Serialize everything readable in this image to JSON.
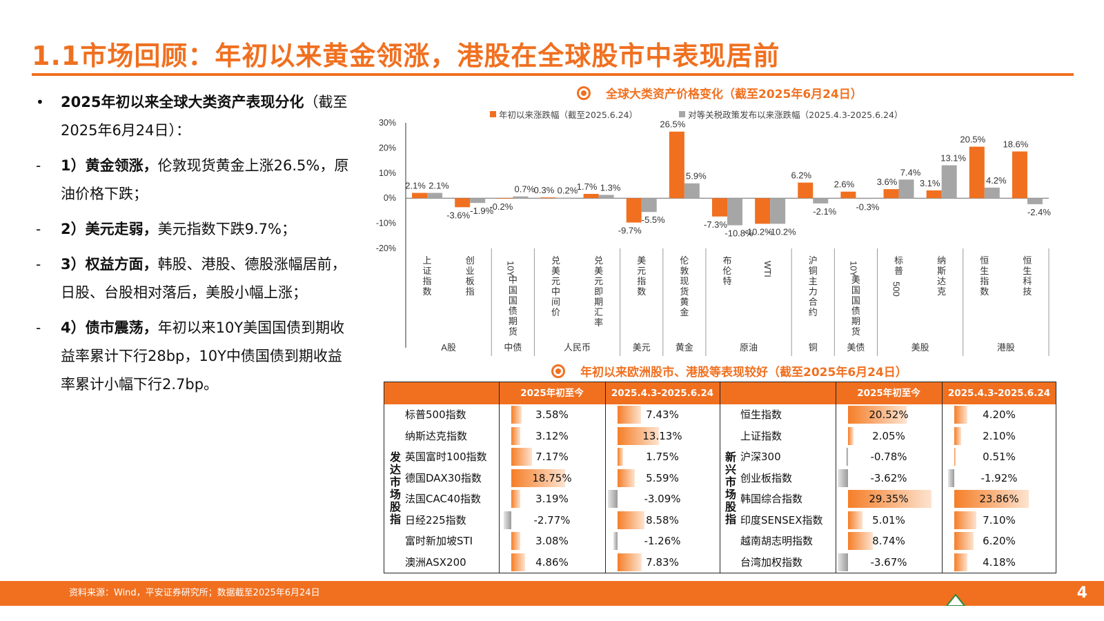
{
  "title": "1.1市场回顾：年初以来黄金领涨，港股在全球股市中表现居前",
  "bullets": [
    {
      "marker": "•",
      "bold": "2025年初以来全球大类资产表现分化",
      "text": "（截至2025年6月24日）："
    },
    {
      "marker": "-",
      "bold": "1）黄金领涨，",
      "text": "伦敦现货黄金上涨26.5%，原油价格下跌；"
    },
    {
      "marker": "-",
      "bold": "2）美元走弱，",
      "text": "美元指数下跌9.7%；"
    },
    {
      "marker": "-",
      "bold": "3）权益方面，",
      "text": "韩股、港股、德股涨幅居前，日股、台股相对落后，美股小幅上涨；"
    },
    {
      "marker": "-",
      "bold": "4）债市震荡，",
      "text": "年初以来10Y美国国债到期收益率累计下行28bp，10Y中债国债到期收益率累计小幅下行2.7bp。"
    }
  ],
  "section1_title": "全球大类资产价格变化（截至2025年6月24日）",
  "section2_title": "年初以来欧洲股市、港股等表现较好（截至2025年6月24日）",
  "legend": {
    "ytd": "年初以来涨跌幅（截至2025.6.24）",
    "tariff": "对等关税政策发布以来涨跌幅（2025.4.3-2025.6.24）"
  },
  "colors": {
    "orange": "#f07020",
    "gray": "#a6a6a6"
  },
  "chart_data": {
    "type": "bar",
    "categories": [
      "上证指数",
      "创业板指",
      "10Y中国国债期货",
      "兑美元中间价",
      "兑美元即期汇率",
      "美元指数",
      "伦敦现货黄金",
      "布伦特",
      "WTI",
      "沪铜主力合约",
      "10Y美国国债期货",
      "标普500",
      "纳斯达克",
      "恒生指数",
      "恒生科技"
    ],
    "groups": [
      {
        "label": "A股",
        "count": 2
      },
      {
        "label": "中债",
        "count": 1
      },
      {
        "label": "人民币",
        "count": 2
      },
      {
        "label": "美元",
        "count": 1
      },
      {
        "label": "黄金",
        "count": 1
      },
      {
        "label": "原油",
        "count": 2
      },
      {
        "label": "铜",
        "count": 1
      },
      {
        "label": "美债",
        "count": 1
      },
      {
        "label": "美股",
        "count": 2
      },
      {
        "label": "港股",
        "count": 2
      }
    ],
    "series": [
      {
        "name": "年初以来涨跌幅（截至2025.6.24）",
        "values": [
          2.1,
          -3.6,
          -0.2,
          0.3,
          1.7,
          -9.7,
          26.5,
          -7.3,
          -10.2,
          6.2,
          2.6,
          3.6,
          3.1,
          20.5,
          18.6
        ]
      },
      {
        "name": "对等关税政策发布以来涨跌幅（2025.4.3-2025.6.24）",
        "values": [
          2.1,
          -1.9,
          0.7,
          0.2,
          1.3,
          -5.5,
          5.9,
          -10.8,
          -10.2,
          -2.1,
          -0.3,
          7.4,
          13.1,
          4.2,
          -2.4
        ]
      }
    ],
    "value_labels": [
      [
        "2.1%",
        "-3.6%",
        "-0.2%",
        "0.3%",
        "1.7%",
        "-9.7%",
        "26.5%",
        "-7.3%",
        "-10.2%",
        "6.2%",
        "2.6%",
        "3.6%",
        "3.1%",
        "20.5%",
        "18.6%"
      ],
      [
        "2.1%",
        "-1.9%",
        "0.7%",
        "0.2%",
        "1.3%",
        "-5.5%",
        "5.9%",
        "-10.8%",
        "-10.2%",
        "-2.1%",
        "-0.3%",
        "7.4%",
        "13.1%",
        "4.2%",
        "-2.4%"
      ]
    ],
    "yticks": [
      "30%",
      "20%",
      "10%",
      "0%",
      "-10%",
      "-20%"
    ],
    "ylim": [
      -20,
      30
    ]
  },
  "table": {
    "col_ytd": "2025年初至今",
    "col_tariff": "2025.4.3-2025.6.24",
    "developed_label": "发达市场股指",
    "emerging_label": "新兴市场股指",
    "developed": [
      {
        "name": "标普500指数",
        "ytd": 3.58,
        "ytd_text": "3.58%",
        "tariff": 7.43,
        "tariff_text": "7.43%"
      },
      {
        "name": "纳斯达克指数",
        "ytd": 3.12,
        "ytd_text": "3.12%",
        "tariff": 13.13,
        "tariff_text": "13.13%"
      },
      {
        "name": "英国富时100指数",
        "ytd": 7.17,
        "ytd_text": "7.17%",
        "tariff": 1.75,
        "tariff_text": "1.75%"
      },
      {
        "name": "德国DAX30指数",
        "ytd": 18.75,
        "ytd_text": "18.75%",
        "tariff": 5.59,
        "tariff_text": "5.59%"
      },
      {
        "name": "法国CAC40指数",
        "ytd": 3.19,
        "ytd_text": "3.19%",
        "tariff": -3.09,
        "tariff_text": "-3.09%"
      },
      {
        "name": "日经225指数",
        "ytd": -2.77,
        "ytd_text": "-2.77%",
        "tariff": 8.58,
        "tariff_text": "8.58%"
      },
      {
        "name": "富时新加坡STI",
        "ytd": 3.08,
        "ytd_text": "3.08%",
        "tariff": -1.26,
        "tariff_text": "-1.26%"
      },
      {
        "name": "澳洲ASX200",
        "ytd": 4.86,
        "ytd_text": "4.86%",
        "tariff": 7.83,
        "tariff_text": "7.83%"
      }
    ],
    "emerging": [
      {
        "name": "恒生指数",
        "ytd": 20.52,
        "ytd_text": "20.52%",
        "tariff": 4.2,
        "tariff_text": "4.20%"
      },
      {
        "name": "上证指数",
        "ytd": 2.05,
        "ytd_text": "2.05%",
        "tariff": 2.1,
        "tariff_text": "2.10%"
      },
      {
        "name": "沪深300",
        "ytd": -0.78,
        "ytd_text": "-0.78%",
        "tariff": 0.51,
        "tariff_text": "0.51%"
      },
      {
        "name": "创业板指数",
        "ytd": -3.62,
        "ytd_text": "-3.62%",
        "tariff": -1.92,
        "tariff_text": "-1.92%"
      },
      {
        "name": "韩国综合指数",
        "ytd": 29.35,
        "ytd_text": "29.35%",
        "tariff": 23.86,
        "tariff_text": "23.86%"
      },
      {
        "name": "印度SENSEX指数",
        "ytd": 5.01,
        "ytd_text": "5.01%",
        "tariff": 7.1,
        "tariff_text": "7.10%"
      },
      {
        "name": "越南胡志明指数",
        "ytd": 8.74,
        "ytd_text": "8.74%",
        "tariff": 6.2,
        "tariff_text": "6.20%"
      },
      {
        "name": "台湾加权指数",
        "ytd": -3.67,
        "ytd_text": "-3.67%",
        "tariff": 4.18,
        "tariff_text": "4.18%"
      }
    ]
  },
  "footer": {
    "source": "资料来源：Wind，平安证券研究所；数据截至2025年6月24日",
    "page": "4"
  }
}
